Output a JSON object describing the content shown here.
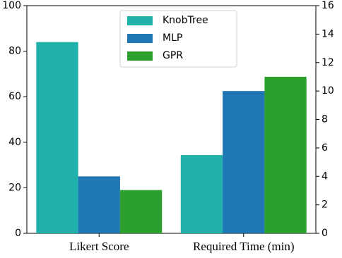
{
  "chart_data": {
    "type": "bar",
    "categories": [
      "Likert Score",
      "Required Time (min)"
    ],
    "category_axis": [
      "y",
      "y2"
    ],
    "series": [
      {
        "name": "KnobTree",
        "color": "#20b2aa",
        "values": [
          84,
          5.5
        ]
      },
      {
        "name": "MLP",
        "color": "#1f77b4",
        "values": [
          25,
          10
        ]
      },
      {
        "name": "GPR",
        "color": "#2ca02c",
        "values": [
          19,
          11
        ]
      }
    ],
    "ylim": [
      0,
      100
    ],
    "yticks": [
      0,
      20,
      40,
      60,
      80,
      100
    ],
    "y2lim": [
      0,
      16
    ],
    "y2ticks": [
      0,
      2,
      4,
      6,
      8,
      10,
      12,
      14,
      16
    ],
    "legend": "upper center"
  }
}
